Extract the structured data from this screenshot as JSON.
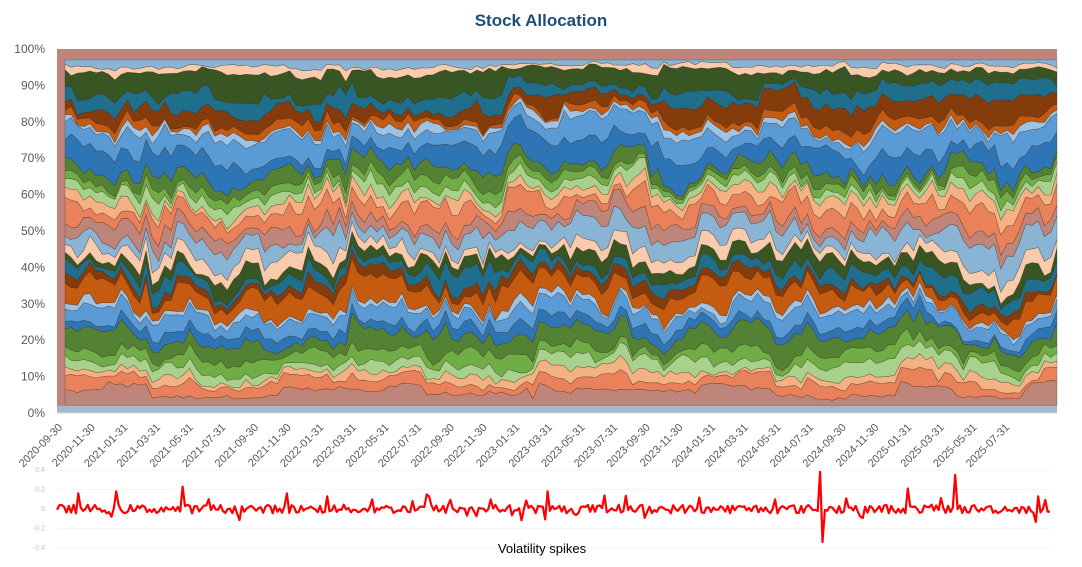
{
  "chart_data": [
    {
      "type": "area",
      "stacking": "percent",
      "title": "Stock Allocation",
      "xlabel": "",
      "ylabel": "",
      "ylim": [
        0,
        100
      ],
      "y_ticks": [
        "0%",
        "10%",
        "20%",
        "30%",
        "40%",
        "50%",
        "60%",
        "70%",
        "80%",
        "90%",
        "100%"
      ],
      "x_ticks": [
        "2020-09-30",
        "2020-11-30",
        "2021-01-31",
        "2021-03-31",
        "2021-05-31",
        "2021-07-31",
        "2021-09-30",
        "2021-11-30",
        "2022-01-31",
        "2022-03-31",
        "2022-05-31",
        "2022-07-31",
        "2022-09-30",
        "2022-11-30",
        "2023-01-31",
        "2023-03-31",
        "2023-05-31",
        "2023-07-31",
        "2023-09-30",
        "2023-11-30",
        "2024-01-31",
        "2024-03-31",
        "2024-05-31",
        "2024-07-31",
        "2024-09-30",
        "2024-11-30",
        "2025-01-31",
        "2025-03-31",
        "2025-05-31",
        "2025-07-31"
      ],
      "palette": [
        "#c0857a",
        "#e9825a",
        "#f4b183",
        "#a9d18e",
        "#70ad47",
        "#548235",
        "#2e75b6",
        "#5b9bd5",
        "#9dc3e6",
        "#c55a11",
        "#843c0c",
        "#1f6e8c",
        "#375623",
        "#f8cbad",
        "#8ab4d4"
      ],
      "series_count": 30,
      "legend": "none"
    },
    {
      "type": "line",
      "caption": "Volatility spikes",
      "ylim": [
        -0.4,
        0.4
      ],
      "y_ticks": [
        "0.4",
        "0.2",
        "0",
        "-0.2",
        "-0.4"
      ],
      "color": "#ff0000",
      "spikes": [
        {
          "date": "2020-11-08",
          "value": 0.16
        },
        {
          "date": "2021-01-15",
          "value": 0.18
        },
        {
          "date": "2021-05-20",
          "value": 0.23
        },
        {
          "date": "2021-11-25",
          "value": 0.16
        },
        {
          "date": "2022-02-10",
          "value": 0.13
        },
        {
          "date": "2022-08-10",
          "value": 0.15
        },
        {
          "date": "2023-03-20",
          "value": 0.18
        },
        {
          "date": "2024-08-05",
          "value": 0.38
        },
        {
          "date": "2024-08-08",
          "value": -0.34
        },
        {
          "date": "2025-01-10",
          "value": 0.21
        },
        {
          "date": "2025-04-07",
          "value": 0.35
        }
      ]
    }
  ]
}
